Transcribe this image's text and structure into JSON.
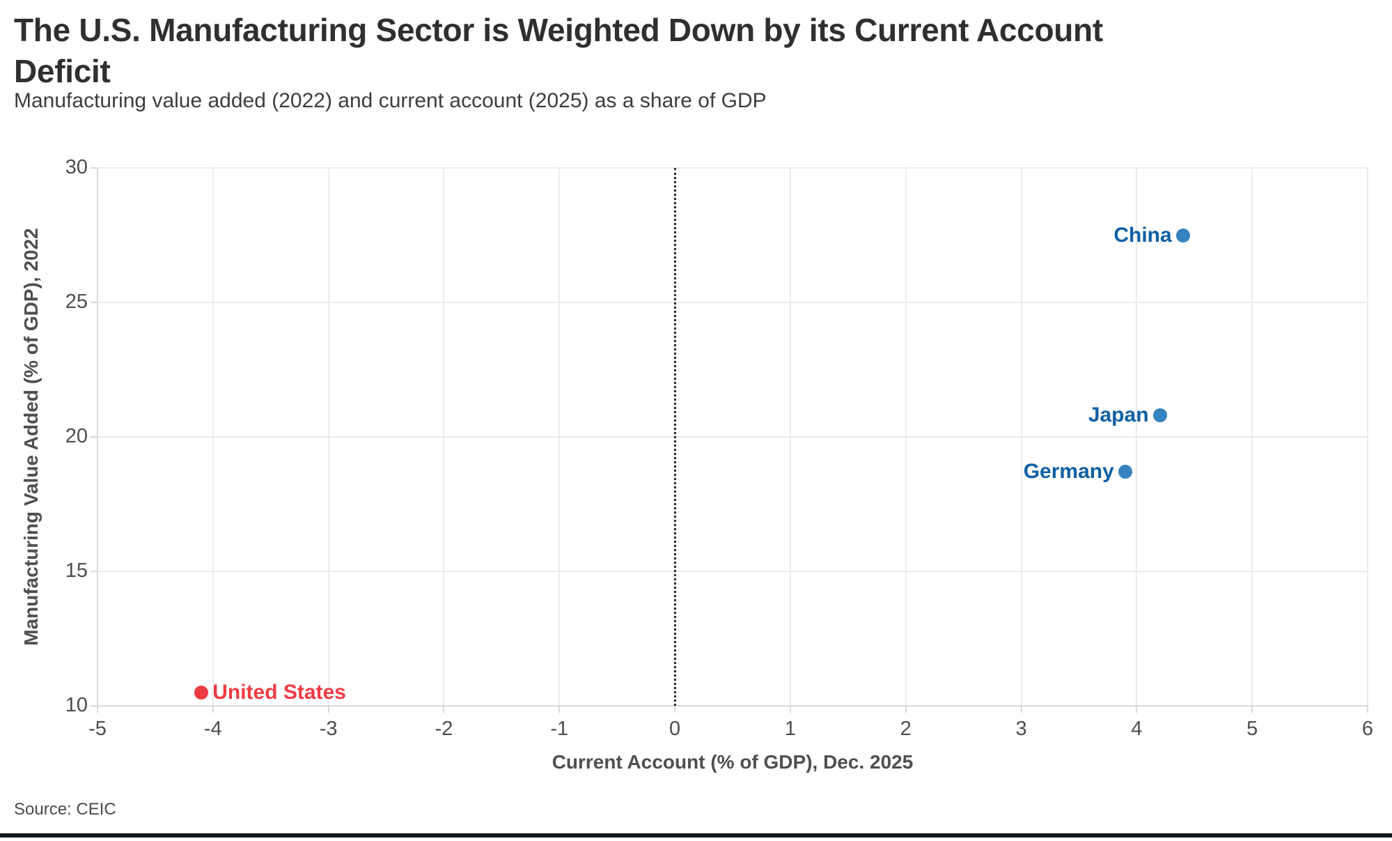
{
  "header": {
    "title": "The U.S. Manufacturing Sector is Weighted Down by its Current Account Deficit",
    "title_line1": "The U.S. Manufacturing Sector is Weighted Down by its Current Account",
    "title_line2": "Deficit",
    "subtitle": "Manufacturing value added (2022) and current account (2025) as a share of GDP"
  },
  "footer": {
    "source": "Source: CEIC"
  },
  "colors": {
    "title_text": "#2f2f2f",
    "subtitle_text": "#3d3d3d",
    "axis_text": "#4d4d4d",
    "gridline": "#ececec",
    "zero_line": "#2a2a2a",
    "blue_dot": "#3583bf",
    "blue_label": "#0d5fa4",
    "red": "#ee3b43",
    "bottom_bar": "#101820"
  },
  "chart_data": {
    "type": "scatter",
    "title": "The U.S. Manufacturing Sector is Weighted Down by its Current Account Deficit",
    "subtitle": "Manufacturing value added (2022) and current account (2025) as a share of GDP",
    "xlabel": "Current Account (% of GDP), Dec. 2025",
    "ylabel": "Manufacturing Value Added (% of GDP), 2022",
    "source": "Source: CEIC",
    "xlim": [
      -5,
      6
    ],
    "ylim": [
      10,
      30
    ],
    "x_ticks": [
      -5,
      -4,
      -3,
      -2,
      -1,
      0,
      1,
      2,
      3,
      4,
      5,
      6
    ],
    "y_ticks": [
      10,
      15,
      20,
      25,
      30
    ],
    "grid": true,
    "legend": "none",
    "zero_reference_line_x": 0,
    "points": [
      {
        "label": "China",
        "x": 4.4,
        "y": 27.5,
        "dot_color": "#3583bf",
        "label_color": "#0d5fa4",
        "label_side": "left"
      },
      {
        "label": "Japan",
        "x": 4.2,
        "y": 20.8,
        "dot_color": "#3583bf",
        "label_color": "#0d5fa4",
        "label_side": "left"
      },
      {
        "label": "Germany",
        "x": 3.9,
        "y": 18.7,
        "dot_color": "#3583bf",
        "label_color": "#0d5fa4",
        "label_side": "left"
      },
      {
        "label": "United States",
        "x": -4.1,
        "y": 10.5,
        "dot_color": "#ee3b43",
        "label_color": "#ee3b43",
        "label_side": "right"
      }
    ]
  }
}
